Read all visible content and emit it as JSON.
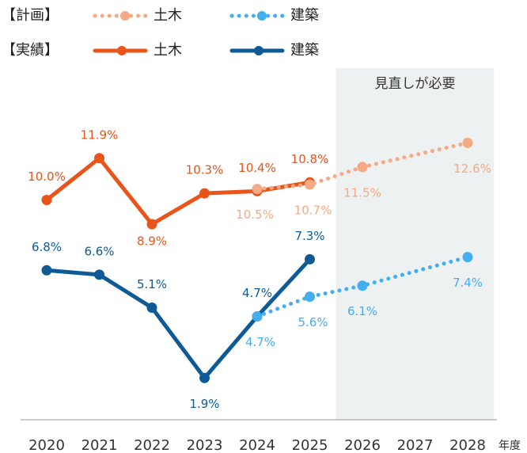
{
  "chart_data": {
    "type": "line",
    "categories": [
      "2020",
      "2021",
      "2022",
      "2023",
      "2024",
      "2025",
      "2026",
      "2027",
      "2028"
    ],
    "x_label": "年度",
    "legend_labels": [
      "【計画】",
      "【実績】"
    ],
    "shaded_region": {
      "label": "見直しが必要",
      "from": "2026",
      "to": "2028",
      "color": "#eef1f2"
    },
    "ylim": [
      0,
      16
    ],
    "series": [
      {
        "name": "土木",
        "color": "#f5a985",
        "style": "dotted",
        "x": [
          "2024",
          "2025",
          "2026",
          "2028"
        ],
        "values": [
          10.5,
          10.7,
          11.5,
          12.6
        ],
        "value_labels": [
          "10.5%",
          "10.7%",
          "11.5%",
          "12.6%"
        ]
      },
      {
        "name": "建築",
        "color": "#45aef0",
        "style": "dotted",
        "x": [
          "2024",
          "2025",
          "2026",
          "2028"
        ],
        "values": [
          4.7,
          5.6,
          6.1,
          7.4
        ],
        "value_labels": [
          "4.7%",
          "5.6%",
          "6.1%",
          "7.4%"
        ]
      },
      {
        "name": "土木",
        "color": "#e8541a",
        "style": "solid",
        "x": [
          "2020",
          "2021",
          "2022",
          "2023",
          "2024",
          "2025"
        ],
        "values": [
          10.0,
          11.9,
          8.9,
          10.3,
          10.4,
          10.8
        ],
        "value_labels": [
          "10.0%",
          "11.9%",
          "8.9%",
          "10.3%",
          "10.4%",
          "10.8%"
        ]
      },
      {
        "name": "建築",
        "color": "#0e5a96",
        "style": "solid",
        "x": [
          "2020",
          "2021",
          "2022",
          "2023",
          "2024",
          "2025"
        ],
        "values": [
          6.8,
          6.6,
          5.1,
          1.9,
          4.7,
          7.3
        ],
        "value_labels": [
          "6.8%",
          "6.6%",
          "5.1%",
          "1.9%",
          "4.7%",
          "7.3%"
        ]
      }
    ]
  }
}
